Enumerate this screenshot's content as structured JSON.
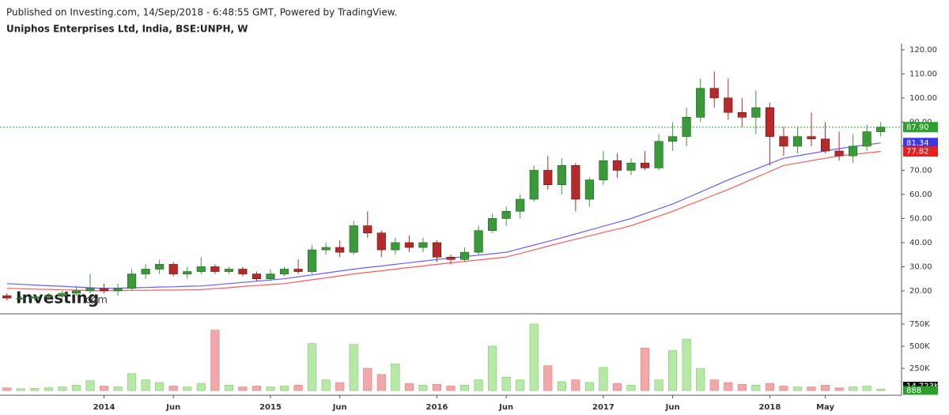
{
  "header": {
    "published": "Published on Investing.com, 14/Sep/2018 - 6:48:55 GMT, Powered by TradingView.",
    "symbol": "Uniphos Enterprises Ltd, India, BSE:UNPH, W"
  },
  "watermark": {
    "brand": "Investing",
    "suffix": ".com"
  },
  "chart_data": [
    {
      "type": "candlestick",
      "xlim": [
        -0.5,
        64.5
      ],
      "xticks": [
        {
          "value": 7,
          "label": "2014"
        },
        {
          "value": 12,
          "label": "Jun"
        },
        {
          "value": 19,
          "label": "2015"
        },
        {
          "value": 24,
          "label": "Jun"
        },
        {
          "value": 31,
          "label": "2016"
        },
        {
          "value": 36,
          "label": "Jun"
        },
        {
          "value": 43,
          "label": "2017"
        },
        {
          "value": 48,
          "label": "Jun"
        },
        {
          "value": 55,
          "label": "2018"
        },
        {
          "value": 59,
          "label": "May"
        }
      ],
      "ylim": [
        10.8,
        122.6
      ],
      "yticks": [
        {
          "value": 20,
          "label": "20.00"
        },
        {
          "value": 30,
          "label": "30.00"
        },
        {
          "value": 40,
          "label": "40.00"
        },
        {
          "value": 50,
          "label": "50.00"
        },
        {
          "value": 60,
          "label": "60.00"
        },
        {
          "value": 70,
          "label": "70.00"
        },
        {
          "value": 80,
          "label": "80.00"
        },
        {
          "value": 90,
          "label": "90.00"
        },
        {
          "value": 100,
          "label": "100.00"
        },
        {
          "value": 110,
          "label": "110.00"
        },
        {
          "value": 120,
          "label": "120.00"
        }
      ],
      "up_color": "#3a9a3a",
      "down_color": "#b52a2a",
      "open": [
        18,
        17,
        17,
        17.5,
        18,
        19,
        20,
        21,
        20,
        21,
        27,
        29,
        31,
        27,
        28,
        30,
        28,
        29,
        27,
        25,
        27,
        29,
        28,
        37,
        38,
        36,
        47,
        44,
        37,
        40,
        38,
        40,
        34,
        33,
        36,
        45,
        50,
        53,
        58,
        70,
        64,
        72,
        58,
        66,
        74,
        70,
        73,
        71,
        82,
        84,
        92,
        104,
        100,
        94,
        92,
        96,
        84,
        80,
        84,
        83,
        78,
        76,
        80,
        86
      ],
      "high": [
        19,
        18,
        18,
        19,
        20,
        22,
        27,
        23,
        23,
        29,
        31,
        33,
        32,
        30,
        34,
        31,
        30,
        30,
        28,
        29,
        30,
        33,
        39,
        40,
        41,
        49,
        53,
        45,
        42,
        43,
        42,
        41,
        35,
        38,
        47,
        52,
        55,
        60,
        72,
        76,
        75,
        73,
        67,
        78,
        77,
        75,
        78,
        85,
        90,
        96,
        108,
        111,
        108,
        100,
        103,
        98,
        88,
        88,
        94,
        90,
        86,
        85,
        89,
        90
      ],
      "low": [
        16,
        16,
        16,
        17,
        17,
        18,
        19,
        19,
        18,
        20,
        25,
        27,
        26,
        25,
        27,
        27,
        27,
        26,
        24,
        24,
        26,
        27,
        27,
        35,
        34,
        35,
        42,
        34,
        35,
        36,
        36,
        32,
        31,
        32,
        35,
        44,
        47,
        50,
        57,
        62,
        60,
        53,
        55,
        64,
        67,
        68,
        70,
        70,
        78,
        80,
        90,
        96,
        91,
        88,
        85,
        72,
        76,
        77,
        80,
        77,
        74,
        73,
        78,
        84
      ],
      "close": [
        17,
        17,
        17.5,
        18,
        19,
        20,
        21,
        20,
        21,
        27,
        29,
        31,
        27,
        28,
        30,
        28,
        29,
        27,
        25,
        27,
        29,
        28,
        37,
        38,
        36,
        47,
        44,
        37,
        40,
        38,
        40,
        34,
        33,
        36,
        45,
        50,
        53,
        58,
        70,
        64,
        72,
        58,
        66,
        74,
        70,
        73,
        71,
        82,
        84,
        92,
        104,
        100,
        94,
        92,
        96,
        84,
        80,
        84,
        83,
        78,
        76,
        80,
        86,
        87.9
      ],
      "series": [
        {
          "color": "#6a5cff",
          "values": [
            23,
            22.7,
            22.4,
            22.1,
            21.9,
            21.6,
            21.3,
            21,
            21.1,
            21.3,
            21.4,
            21.6,
            21.7,
            21.9,
            22,
            22.5,
            23,
            23.5,
            24,
            24.5,
            25,
            25.8,
            26.6,
            27.4,
            28.2,
            29,
            29.7,
            30.3,
            31,
            31.7,
            32.3,
            33,
            33.6,
            34.2,
            34.8,
            35.4,
            36,
            37.5,
            39,
            40.5,
            42,
            43.6,
            45.2,
            46.8,
            48.4,
            50,
            52,
            54,
            56,
            58.5,
            61,
            63.5,
            66,
            68.3,
            70.5,
            72.8,
            75,
            76,
            77,
            78,
            79,
            79.8,
            80.6,
            81.34
          ]
        },
        {
          "color": "#ff5a5a",
          "values": [
            21,
            20.9,
            20.7,
            20.6,
            20.4,
            20.3,
            20.1,
            20,
            20.1,
            20.2,
            20.2,
            20.3,
            20.3,
            20.4,
            20.5,
            20.9,
            21.3,
            21.8,
            22.2,
            22.6,
            23,
            23.8,
            24.6,
            25.4,
            26.2,
            27,
            27.7,
            28.3,
            29,
            29.7,
            30.3,
            31,
            31.6,
            32.2,
            32.8,
            33.4,
            34,
            35.5,
            37,
            38.5,
            40,
            41.4,
            42.8,
            44.2,
            45.6,
            47,
            49,
            51,
            53,
            55.3,
            57.5,
            59.8,
            62,
            64.5,
            67,
            69.5,
            72,
            73,
            74,
            75,
            76,
            76.6,
            77.2,
            77.82
          ]
        }
      ],
      "last_labels": [
        {
          "value": 87.9,
          "label": "87.90",
          "color": "#2ca02c"
        },
        {
          "value": 81.34,
          "label": "81.34",
          "color": "#3b36e6"
        },
        {
          "value": 77.82,
          "label": "77.82",
          "color": "#e52020"
        }
      ]
    },
    {
      "type": "volume",
      "ylim": [
        -44000,
        856000
      ],
      "yticks": [
        {
          "value": 250000,
          "label": "250K"
        },
        {
          "value": 500000,
          "label": "500K"
        },
        {
          "value": 750000,
          "label": "750K"
        }
      ],
      "up_color": "#b6e8a6",
      "down_color": "#f2a8a8",
      "values": [
        30000,
        20000,
        25000,
        30000,
        40000,
        60000,
        110000,
        50000,
        40000,
        190000,
        120000,
        90000,
        50000,
        40000,
        80000,
        680000,
        60000,
        40000,
        50000,
        40000,
        50000,
        60000,
        530000,
        120000,
        90000,
        520000,
        250000,
        180000,
        300000,
        80000,
        60000,
        70000,
        50000,
        60000,
        120000,
        500000,
        150000,
        120000,
        750000,
        280000,
        100000,
        120000,
        90000,
        260000,
        80000,
        60000,
        480000,
        120000,
        450000,
        580000,
        250000,
        120000,
        90000,
        70000,
        60000,
        80000,
        50000,
        40000,
        40000,
        60000,
        30000,
        40000,
        50000,
        15000
      ],
      "last_labels": [
        {
          "value": 14723,
          "label": "14.723K",
          "color": "#111111"
        },
        {
          "value": 888,
          "label": "888",
          "color": "#2ca02c"
        }
      ]
    }
  ]
}
